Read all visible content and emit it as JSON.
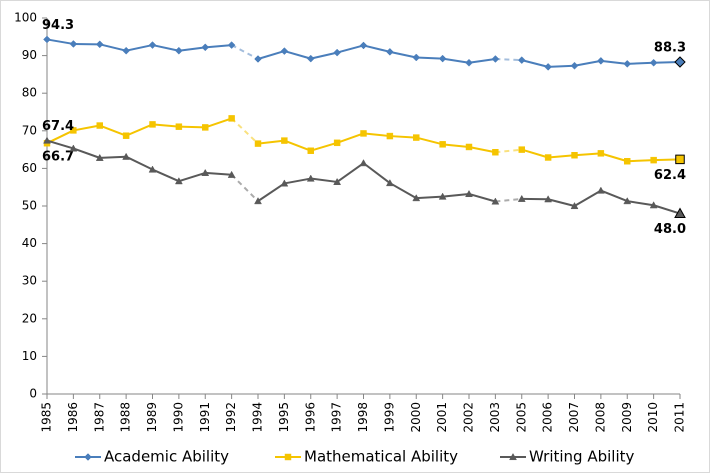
{
  "chart_data": {
    "type": "line",
    "categories": [
      "1985",
      "1986",
      "1987",
      "1988",
      "1989",
      "1990",
      "1991",
      "1992",
      "1994",
      "1995",
      "1996",
      "1997",
      "1998",
      "1999",
      "2000",
      "2001",
      "2002",
      "2003",
      "2005",
      "2006",
      "2007",
      "2008",
      "2009",
      "2010",
      "2011"
    ],
    "series": [
      {
        "name": "Academic Ability",
        "color": "#4a7ebb",
        "marker": "diamond",
        "values": [
          94.3,
          93.1,
          93.0,
          91.3,
          92.8,
          91.3,
          92.2,
          92.8,
          89.1,
          91.2,
          89.2,
          90.8,
          92.7,
          91.0,
          89.5,
          89.2,
          88.1,
          89.1,
          88.8,
          87.0,
          87.3,
          88.6,
          87.8,
          88.1,
          88.3
        ],
        "value_labels": [
          "94.3",
          null,
          null,
          null,
          null,
          null,
          null,
          null,
          null,
          null,
          null,
          null,
          null,
          null,
          null,
          null,
          null,
          null,
          null,
          null,
          null,
          null,
          null,
          null,
          "88.3"
        ]
      },
      {
        "name": "Mathematical Ability",
        "color": "#f5c400",
        "marker": "square",
        "values": [
          66.7,
          70.1,
          71.4,
          68.7,
          71.7,
          71.1,
          70.9,
          73.3,
          66.6,
          67.4,
          64.7,
          66.8,
          69.3,
          68.6,
          68.2,
          66.4,
          65.7,
          64.3,
          65.0,
          62.9,
          63.5,
          64.0,
          61.9,
          62.2,
          62.4
        ],
        "value_labels": [
          "66.7",
          null,
          null,
          null,
          null,
          null,
          null,
          null,
          null,
          null,
          null,
          null,
          null,
          null,
          null,
          null,
          null,
          null,
          null,
          null,
          null,
          null,
          null,
          null,
          "62.4"
        ]
      },
      {
        "name": "Writing Ability",
        "color": "#595959",
        "marker": "triangle",
        "values": [
          67.4,
          65.3,
          62.8,
          63.1,
          59.7,
          56.6,
          58.8,
          58.3,
          51.3,
          56.0,
          57.3,
          56.4,
          61.4,
          56.1,
          52.1,
          52.5,
          53.2,
          51.2,
          51.9,
          51.8,
          50.0,
          54.1,
          51.3,
          50.2,
          48.0
        ],
        "value_labels": [
          "67.4",
          null,
          null,
          null,
          null,
          null,
          null,
          null,
          null,
          null,
          null,
          null,
          null,
          null,
          null,
          null,
          null,
          null,
          null,
          null,
          null,
          null,
          null,
          null,
          "48.0"
        ]
      }
    ],
    "ylim": [
      0,
      100
    ],
    "yticks": [
      0,
      10,
      20,
      30,
      40,
      50,
      60,
      70,
      80,
      90,
      100
    ],
    "grid": false,
    "legend": "bottom"
  }
}
